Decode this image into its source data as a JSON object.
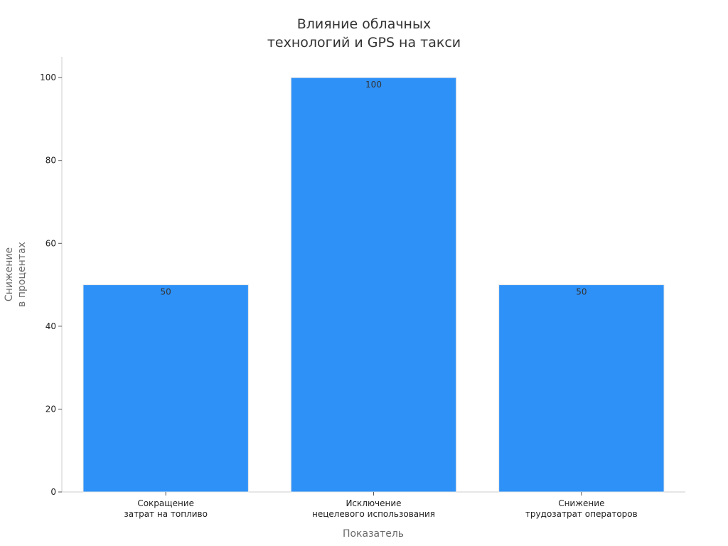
{
  "chart_data": {
    "type": "bar",
    "title_lines": [
      "Влияние облачных",
      "технологий и GPS на такси"
    ],
    "xlabel": "Показатель",
    "ylabel_lines": [
      "Снижение",
      "в процентах"
    ],
    "categories": [
      [
        "Сокращение",
        "затрат на топливо"
      ],
      [
        "Исключение",
        "нецелевого использования"
      ],
      [
        "Снижение",
        "трудозатрат операторов"
      ]
    ],
    "values": [
      50,
      100,
      50
    ],
    "data_labels": [
      "50",
      "100",
      "50"
    ],
    "ylim": [
      0,
      105
    ],
    "yticks": [
      0,
      20,
      40,
      60,
      80,
      100
    ],
    "grid": false,
    "legend": "none",
    "colors": {
      "bar": "#2e91f8",
      "bar_edge": "#e6e6e6",
      "axis": "#cccccc"
    }
  }
}
